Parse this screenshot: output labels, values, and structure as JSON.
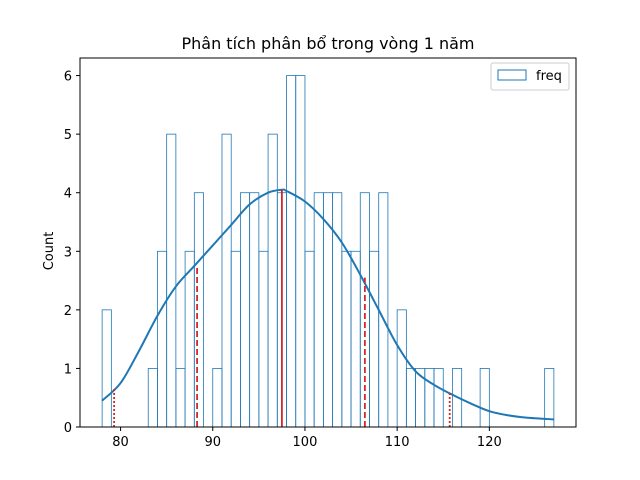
{
  "chart_data": {
    "type": "bar",
    "title": "Phân tích phân bổ trong vòng 1 năm",
    "xlabel": "",
    "ylabel": "Count",
    "xlim": [
      75.6,
      129.4
    ],
    "ylim": [
      0,
      6.3
    ],
    "x_ticks": [
      80,
      90,
      100,
      110,
      120
    ],
    "y_ticks": [
      0,
      1,
      2,
      3,
      4,
      5,
      6
    ],
    "bin_start": 78,
    "bin_width": 1,
    "counts": [
      2,
      0,
      0,
      0,
      0,
      1,
      3,
      5,
      1,
      3,
      4,
      0,
      1,
      5,
      3,
      4,
      4,
      3,
      5,
      4,
      6,
      6,
      3,
      4,
      4,
      4,
      3,
      3,
      4,
      3,
      4,
      0,
      2,
      1,
      1,
      1,
      1,
      0,
      1,
      0,
      0,
      1,
      0,
      0,
      0,
      0,
      0,
      0,
      1
    ],
    "legend": {
      "entries": [
        "freq"
      ],
      "placement": "top-right"
    },
    "color": "#1f77b4",
    "kde": {
      "x": [
        78,
        80,
        82,
        84,
        86,
        88,
        90,
        92,
        94,
        96,
        97.5,
        98,
        100,
        102,
        104,
        106,
        108,
        110,
        112,
        114,
        116,
        118,
        120,
        122,
        124,
        127
      ],
      "y": [
        0.45,
        0.75,
        1.3,
        1.9,
        2.4,
        2.75,
        3.1,
        3.45,
        3.8,
        4.0,
        4.05,
        4.03,
        3.85,
        3.55,
        3.15,
        2.6,
        2.0,
        1.4,
        0.95,
        0.72,
        0.55,
        0.4,
        0.27,
        0.2,
        0.16,
        0.13
      ]
    },
    "quantile_lines": [
      {
        "x": 79.3,
        "y": 0.65,
        "style": "dotted"
      },
      {
        "x": 88.3,
        "y": 2.75,
        "style": "dashed"
      },
      {
        "x": 97.5,
        "y": 4.05,
        "style": "solid"
      },
      {
        "x": 106.5,
        "y": 2.55,
        "style": "dashed"
      },
      {
        "x": 115.7,
        "y": 0.6,
        "style": "dotted"
      }
    ],
    "quantile_color": "#d62728"
  }
}
